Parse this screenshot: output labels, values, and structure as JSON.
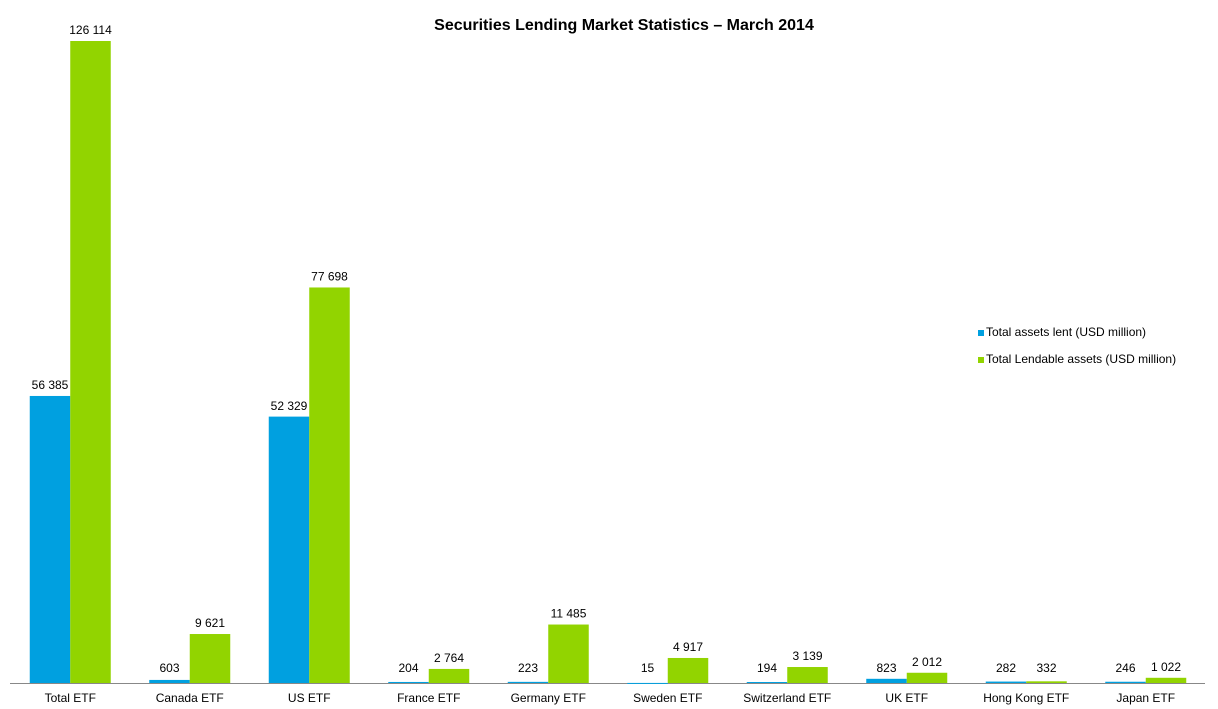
{
  "chart_data": {
    "type": "bar",
    "title": "Securities Lending Market Statistics – March 2014",
    "categories": [
      "Total ETF",
      "Canada ETF",
      "US ETF",
      "France ETF",
      "Germany ETF",
      "Sweden ETF",
      "Switzerland ETF",
      "UK ETF",
      "Hong Kong ETF",
      "Japan ETF"
    ],
    "series": [
      {
        "name": "Total assets lent (USD million)",
        "color": "#00a0e0",
        "values": [
          56385,
          603,
          52329,
          204,
          223,
          15,
          194,
          823,
          282,
          246
        ],
        "value_labels": [
          "56 385",
          "603",
          "52 329",
          "204",
          "223",
          "15",
          "194",
          "823",
          "282",
          "246"
        ]
      },
      {
        "name": "Total Lendable assets (USD million)",
        "color": "#92d400",
        "values": [
          126114,
          9621,
          77698,
          2764,
          11485,
          4917,
          3139,
          2012,
          332,
          1022
        ],
        "value_labels": [
          "126 114",
          "9 621",
          "77 698",
          "2 764",
          "11 485",
          "4 917",
          "3 139",
          "2 012",
          "332",
          "1 022"
        ]
      }
    ],
    "ylim": [
      0,
      126114
    ],
    "legend": "right"
  }
}
